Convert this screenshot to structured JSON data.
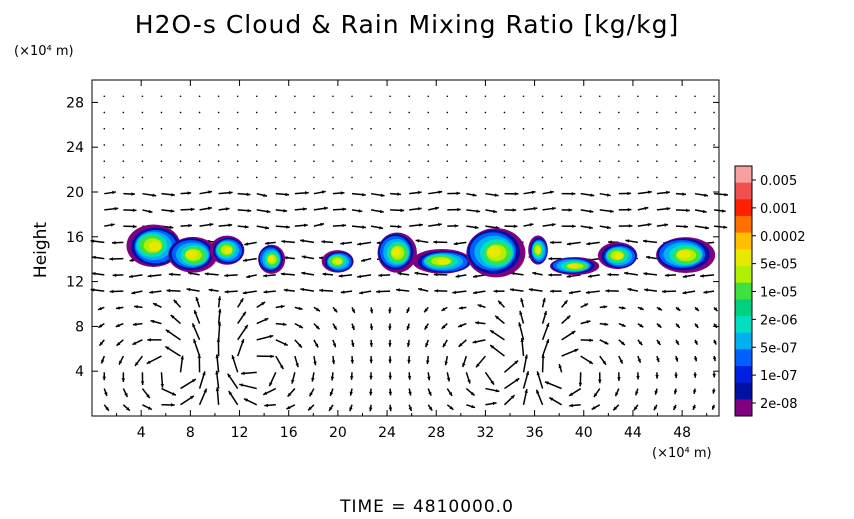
{
  "chart_data": {
    "type": "heatmap",
    "title": "H2O-s Cloud & Rain Mixing Ratio [kg/kg]",
    "ylabel": "Height",
    "y_unit": "(×10⁴ m)",
    "x_unit": "(×10⁴ m)",
    "xlim": [
      0,
      51
    ],
    "ylim": [
      0,
      30
    ],
    "x_ticks": [
      "4",
      "8",
      "12",
      "16",
      "20",
      "24",
      "28",
      "32",
      "36",
      "40",
      "44",
      "48"
    ],
    "y_ticks": [
      "4",
      "8",
      "12",
      "16",
      "20",
      "24",
      "28"
    ],
    "colorbar": {
      "labels": [
        "0.005",
        "0.001",
        "0.0002",
        "5e-05",
        "1e-05",
        "2e-06",
        "5e-07",
        "1e-07",
        "2e-08"
      ],
      "colors": [
        "#f8a0a0",
        "#f05050",
        "#ff2000",
        "#ff7000",
        "#ffc000",
        "#e8e800",
        "#b0f000",
        "#40e040",
        "#00d080",
        "#00e0c0",
        "#00b0f0",
        "#0060ff",
        "#0020e0",
        "#0010a0",
        "#800080"
      ]
    },
    "cloud_blobs": [
      {
        "x": 5.0,
        "y": 15.2,
        "rx": 2.2,
        "ry": 1.9
      },
      {
        "x": 8.2,
        "y": 14.4,
        "rx": 2.0,
        "ry": 1.6
      },
      {
        "x": 11.0,
        "y": 14.8,
        "rx": 1.4,
        "ry": 1.3
      },
      {
        "x": 14.6,
        "y": 14.0,
        "rx": 1.1,
        "ry": 1.3
      },
      {
        "x": 20.0,
        "y": 13.8,
        "rx": 1.3,
        "ry": 1.0
      },
      {
        "x": 24.8,
        "y": 14.6,
        "rx": 1.6,
        "ry": 1.8
      },
      {
        "x": 28.5,
        "y": 13.8,
        "rx": 2.4,
        "ry": 1.1
      },
      {
        "x": 32.8,
        "y": 14.6,
        "rx": 2.4,
        "ry": 2.2
      },
      {
        "x": 36.3,
        "y": 14.8,
        "rx": 0.8,
        "ry": 1.3
      },
      {
        "x": 39.2,
        "y": 13.4,
        "rx": 2.0,
        "ry": 0.8
      },
      {
        "x": 42.8,
        "y": 14.3,
        "rx": 1.6,
        "ry": 1.2
      },
      {
        "x": 48.2,
        "y": 14.4,
        "rx": 2.4,
        "ry": 1.6
      }
    ],
    "circulation_centers": [
      {
        "x": 7.0,
        "y": 4.0
      },
      {
        "x": 13.0,
        "y": 4.5
      },
      {
        "x": 33.5,
        "y": 4.5
      },
      {
        "x": 38.0,
        "y": 4.0
      }
    ],
    "time_label": "TIME = 4810000.0"
  }
}
